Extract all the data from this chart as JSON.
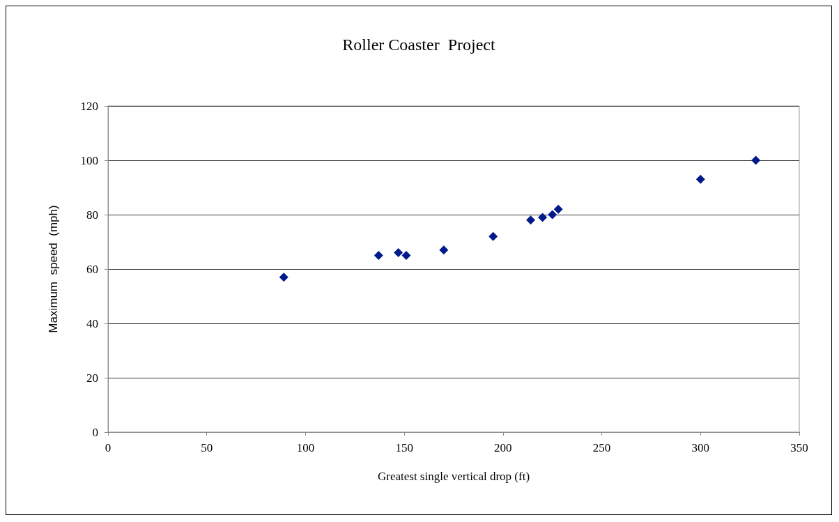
{
  "chart_data": {
    "type": "scatter",
    "title": "Roller Coaster  Project",
    "xlabel": "Greatest single vertical drop (ft)",
    "ylabel": "Maximum  speed  (mph)",
    "x": [
      89,
      137,
      147,
      151,
      170,
      195,
      214,
      220,
      225,
      228,
      300,
      328
    ],
    "values": [
      57,
      65,
      66,
      65,
      67,
      72,
      78,
      79,
      80,
      82,
      93,
      100
    ],
    "color": "#001a8c",
    "marker": "diamond",
    "xlim": [
      0,
      350
    ],
    "xticks": [
      0,
      50,
      100,
      150,
      200,
      250,
      300,
      350
    ],
    "ylim": [
      0,
      120
    ],
    "yticks": [
      0,
      20,
      40,
      60,
      80,
      100,
      120
    ],
    "grid": "y"
  }
}
